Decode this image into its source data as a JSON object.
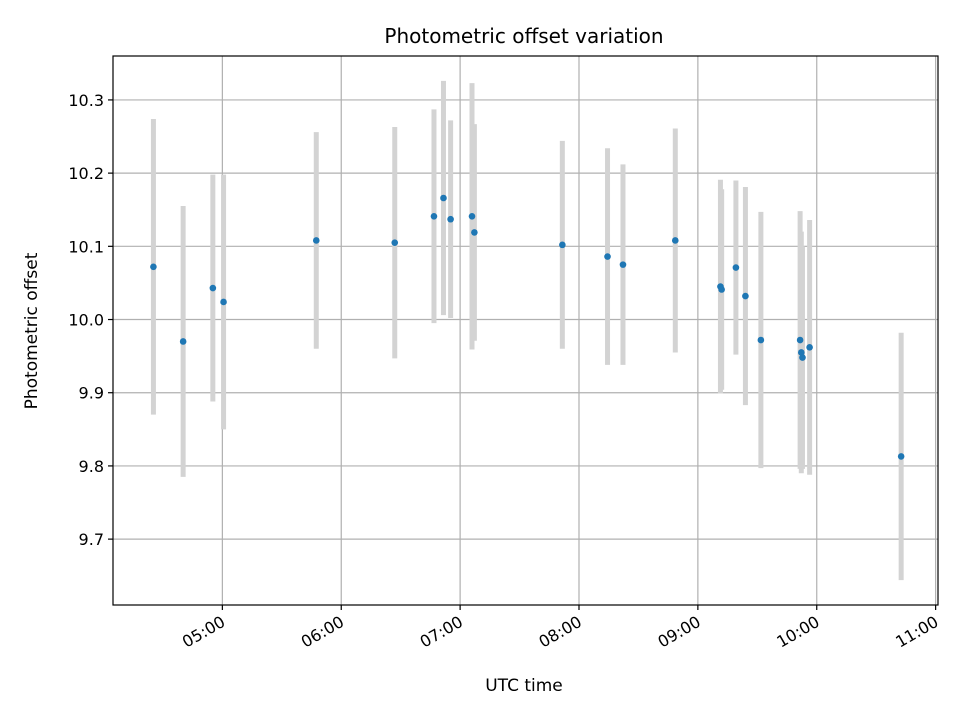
{
  "chart_data": {
    "type": "scatter",
    "title": "Photometric offset variation",
    "xlabel": "UTC time",
    "ylabel": "Photometric offset",
    "x_ticks": [
      "05:00",
      "06:00",
      "07:00",
      "08:00",
      "09:00",
      "10:00",
      "11:00"
    ],
    "x_tick_hours": [
      5,
      6,
      7,
      8,
      9,
      10,
      11
    ],
    "xlim": [
      "04:05",
      "11:00"
    ],
    "xlim_hours": [
      4.08,
      11.02
    ],
    "y_ticks": [
      9.7,
      9.8,
      9.9,
      10.0,
      10.1,
      10.2,
      10.3
    ],
    "ylim": [
      9.61,
      10.36
    ],
    "grid": true,
    "colors": {
      "point": "#1f77b4",
      "errorbar": "#d3d3d3",
      "grid": "#b0b0b0"
    },
    "series": [
      {
        "points": [
          {
            "x": "04:25",
            "h": 4.42,
            "y": 10.072,
            "err": 0.202
          },
          {
            "x": "04:40",
            "h": 4.67,
            "y": 9.97,
            "err": 0.185
          },
          {
            "x": "04:55",
            "h": 4.92,
            "y": 10.043,
            "err": 0.155
          },
          {
            "x": "05:00",
            "h": 5.01,
            "y": 10.024,
            "err": 0.174
          },
          {
            "x": "05:47",
            "h": 5.79,
            "y": 10.108,
            "err": 0.148
          },
          {
            "x": "06:27",
            "h": 6.45,
            "y": 10.105,
            "err": 0.158
          },
          {
            "x": "06:47",
            "h": 6.78,
            "y": 10.141,
            "err": 0.146
          },
          {
            "x": "06:52",
            "h": 6.86,
            "y": 10.166,
            "err": 0.16
          },
          {
            "x": "06:55",
            "h": 6.92,
            "y": 10.137,
            "err": 0.135
          },
          {
            "x": "07:06",
            "h": 7.1,
            "y": 10.141,
            "err": 0.182
          },
          {
            "x": "07:07",
            "h": 7.12,
            "y": 10.119,
            "err": 0.148
          },
          {
            "x": "07:52",
            "h": 7.86,
            "y": 10.102,
            "err": 0.142
          },
          {
            "x": "08:14",
            "h": 8.24,
            "y": 10.086,
            "err": 0.148
          },
          {
            "x": "08:22",
            "h": 8.37,
            "y": 10.075,
            "err": 0.137
          },
          {
            "x": "08:49",
            "h": 8.81,
            "y": 10.108,
            "err": 0.153
          },
          {
            "x": "09:11",
            "h": 9.19,
            "y": 10.045,
            "err": 0.146
          },
          {
            "x": "09:12",
            "h": 9.2,
            "y": 10.041,
            "err": 0.137
          },
          {
            "x": "09:19",
            "h": 9.32,
            "y": 10.071,
            "err": 0.119
          },
          {
            "x": "09:24",
            "h": 9.4,
            "y": 10.032,
            "err": 0.149
          },
          {
            "x": "09:32",
            "h": 9.53,
            "y": 9.972,
            "err": 0.175
          },
          {
            "x": "09:52",
            "h": 9.86,
            "y": 9.972,
            "err": 0.176
          },
          {
            "x": "09:53",
            "h": 9.87,
            "y": 9.955,
            "err": 0.165
          },
          {
            "x": "09:53",
            "h": 9.88,
            "y": 9.948,
            "err": 0.152
          },
          {
            "x": "09:56",
            "h": 9.94,
            "y": 9.962,
            "err": 0.174
          },
          {
            "x": "10:42",
            "h": 10.71,
            "y": 9.813,
            "err": 0.169
          }
        ]
      }
    ]
  }
}
